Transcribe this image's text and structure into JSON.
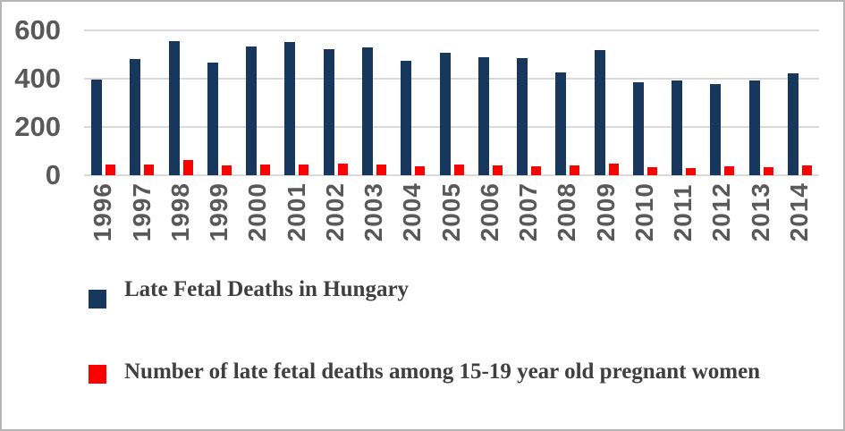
{
  "chart_data": {
    "type": "bar",
    "title": "",
    "categories": [
      "1996",
      "1997",
      "1998",
      "1999",
      "2000",
      "2001",
      "2002",
      "2003",
      "2004",
      "2005",
      "2006",
      "2007",
      "2008",
      "2009",
      "2010",
      "2011",
      "2012",
      "2013",
      "2014"
    ],
    "series": [
      {
        "name": "Late Fetal Deaths in Hungary",
        "color": "#17375D",
        "values": [
          396,
          480,
          555,
          468,
          535,
          553,
          522,
          530,
          475,
          506,
          489,
          485,
          427,
          518,
          385,
          392,
          377,
          392,
          422
        ]
      },
      {
        "name": "Number of late fetal deaths among 15-19 year old pregnant women",
        "color": "#FF0000",
        "values": [
          45,
          43,
          62,
          42,
          45,
          45,
          50,
          43,
          38,
          45,
          42,
          38,
          41,
          50,
          35,
          31,
          38,
          33,
          39
        ]
      }
    ],
    "ylim": [
      0,
      600
    ],
    "yticks": [
      0,
      200,
      400,
      600
    ],
    "grid": "horizontal",
    "legend_position": "bottom-left",
    "x_tick_rotation": 90
  },
  "colors": {
    "axis_text": "#595959",
    "legend_text": "#3F3F3F",
    "gridline": "#DADADA",
    "frame_border": "#B5B5B5",
    "background": "#FFFFFF"
  }
}
